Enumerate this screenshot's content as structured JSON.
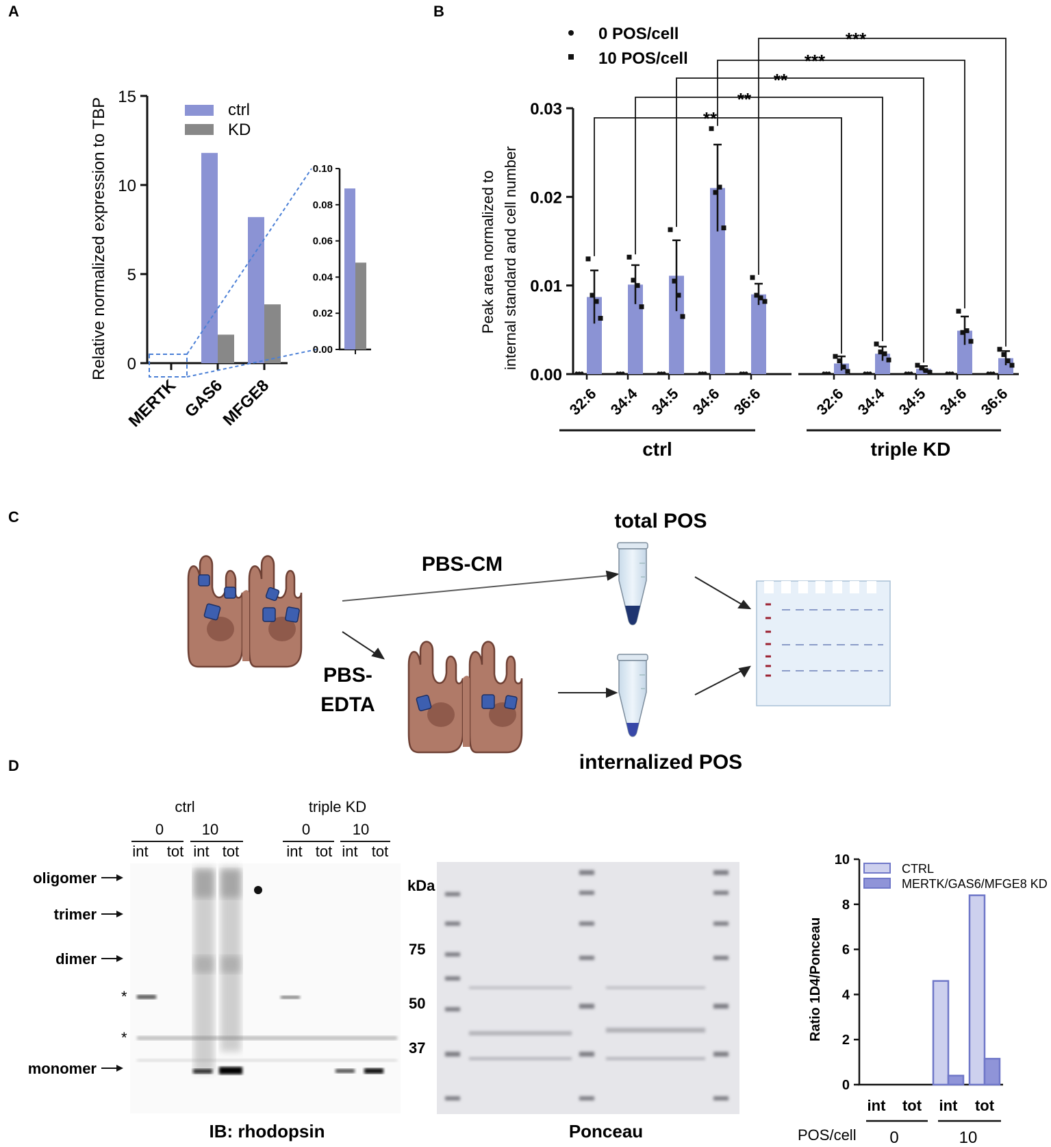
{
  "panels": {
    "a": "A",
    "b": "B",
    "c": "C",
    "d": "D"
  },
  "colors": {
    "ctrl": "#8b93d4",
    "kd": "#888888",
    "ctrl_light": "#cdd0ee",
    "kd_dark": "#8f94d8",
    "bar_edge": "#6f77c8",
    "dots": "#111111",
    "dashed_box": "#4a7fd6",
    "cell": "#b07a68",
    "pos": "#3d5fb0"
  },
  "chart_data": [
    {
      "id": "A",
      "type": "bar",
      "title": "",
      "categories": [
        "MERTK",
        "GAS6",
        "MFGE8"
      ],
      "series": [
        {
          "name": "ctrl",
          "values": [
            0.089,
            11.8,
            8.2
          ]
        },
        {
          "name": "KD",
          "values": [
            0.048,
            1.6,
            3.3
          ]
        }
      ],
      "ylabel": "Relative normalized expression to TBP",
      "ylim": [
        0,
        15
      ],
      "yticks": [
        0,
        5,
        10,
        15
      ],
      "ytick_labels": [
        "0",
        "5",
        "10",
        "15"
      ],
      "inset": {
        "category": "MERTK",
        "ylim": [
          0,
          0.1
        ],
        "yticks": [
          0,
          0.02,
          0.04,
          0.06,
          0.08,
          0.1
        ],
        "ytick_labels": [
          "0.00",
          "0.02",
          "0.04",
          "0.06",
          "0.08",
          "0.10"
        ]
      }
    },
    {
      "id": "B",
      "type": "bar",
      "title": "",
      "groups": [
        {
          "name": "ctrl",
          "categories": [
            "32:6",
            "34:4",
            "34:5",
            "34:6",
            "36:6"
          ],
          "pos0": [
            0.0001,
            0.0001,
            0.0001,
            0.0001,
            0.0001
          ],
          "pos10": [
            0.0087,
            0.0101,
            0.0111,
            0.021,
            0.009
          ],
          "sd10": [
            0.003,
            0.0022,
            0.004,
            0.0049,
            0.0012
          ],
          "points10": [
            [
              0.013,
              0.0089,
              0.0082,
              0.0063
            ],
            [
              0.0132,
              0.0106,
              0.01,
              0.0076
            ],
            [
              0.0163,
              0.0105,
              0.0089,
              0.0065
            ],
            [
              0.0277,
              0.0205,
              0.0211,
              0.0165
            ],
            [
              0.0109,
              0.0089,
              0.0086,
              0.0082
            ]
          ]
        },
        {
          "name": "triple KD",
          "categories": [
            "32:6",
            "34:4",
            "34:5",
            "34:6",
            "36:6"
          ],
          "pos0": [
            0.0001,
            0.0001,
            0.0001,
            0.0001,
            0.0001
          ],
          "pos10": [
            0.0012,
            0.0023,
            0.0006,
            0.0049,
            0.0018
          ],
          "sd10": [
            0.0008,
            0.0008,
            0.0003,
            0.0016,
            0.0008
          ],
          "points10": [
            [
              0.002,
              0.0015,
              0.0008,
              0.0003
            ],
            [
              0.0034,
              0.0025,
              0.0023,
              0.0016
            ],
            [
              0.001,
              0.0007,
              0.0004,
              0.0002
            ],
            [
              0.0071,
              0.0047,
              0.0049,
              0.0037
            ],
            [
              0.0028,
              0.0022,
              0.0015,
              0.001
            ]
          ]
        }
      ],
      "legend": [
        "0 POS/cell",
        "10 POS/cell"
      ],
      "ylabel_lines": [
        "Peak area normalized to",
        "internal standard and cell number"
      ],
      "ylim": [
        0,
        0.03
      ],
      "yticks": [
        0,
        0.01,
        0.02,
        0.03
      ],
      "ytick_labels": [
        "0.00",
        "0.01",
        "0.02",
        "0.03"
      ],
      "significance": [
        "**",
        "**",
        "**",
        "***",
        "***"
      ]
    },
    {
      "id": "D",
      "type": "bar",
      "title": "",
      "categories": [
        "int",
        "tot",
        "int",
        "tot"
      ],
      "pos_groups": [
        {
          "label": "0",
          "count": 2
        },
        {
          "label": "10",
          "count": 2
        }
      ],
      "pos_axis_label": "POS/cell",
      "series": [
        {
          "name": "CTRL",
          "values": [
            0,
            0,
            4.6,
            8.4
          ]
        },
        {
          "name": "MERTK/GAS6/MFGE8 KD",
          "values": [
            0,
            0,
            0.4,
            1.15
          ]
        }
      ],
      "ylabel": "Ratio 1D4/Ponceau",
      "ylim": [
        0,
        10
      ],
      "yticks": [
        0,
        2,
        4,
        6,
        8,
        10
      ],
      "ytick_labels": [
        "0",
        "2",
        "4",
        "6",
        "8",
        "10"
      ]
    }
  ],
  "schematic": {
    "total_label": "total POS",
    "pbs_cm": "PBS-CM",
    "pbs_edta": [
      "PBS-",
      "EDTA"
    ],
    "internalized_label": "internalized POS"
  },
  "blot": {
    "header_ctrl": "ctrl",
    "header_kd": "triple KD",
    "pos_levels": [
      "0",
      "10",
      "0",
      "10"
    ],
    "lane_labels": [
      "int",
      "tot",
      "int",
      "tot",
      "int",
      "tot",
      "int",
      "tot"
    ],
    "band_labels": [
      "oligomer",
      "trimer",
      "dimer",
      "monomer"
    ],
    "asterisks": [
      "*",
      "*"
    ],
    "ib_label": "IB: rhodopsin",
    "marker_unit": "kDa",
    "markers": [
      "75",
      "50",
      "37"
    ],
    "ponceau_label": "Ponceau"
  }
}
